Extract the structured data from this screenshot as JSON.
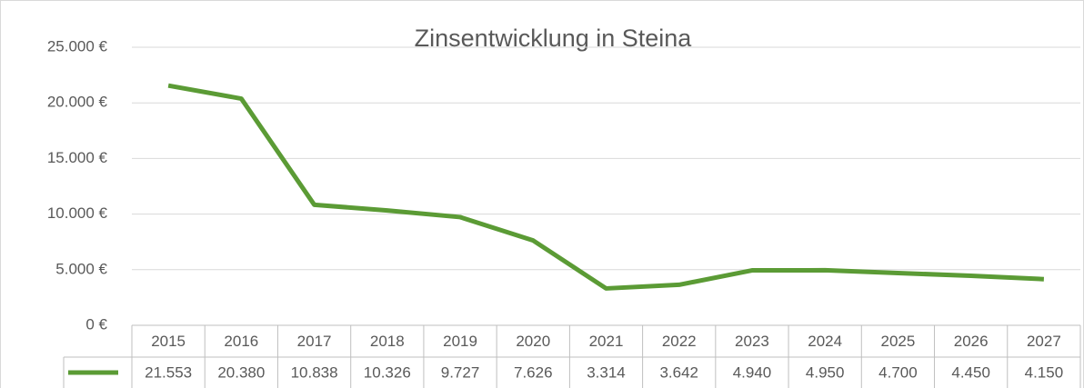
{
  "chart_data": {
    "type": "line",
    "title": "Zinsentwicklung in Steina",
    "categories": [
      "2015",
      "2016",
      "2017",
      "2018",
      "2019",
      "2020",
      "2021",
      "2022",
      "2023",
      "2024",
      "2025",
      "2026",
      "2027"
    ],
    "series": [
      {
        "color": "#5b9b35",
        "values": [
          21553,
          20380,
          10838,
          10326,
          9727,
          7626,
          3314,
          3642,
          4940,
          4950,
          4700,
          4450,
          4150
        ],
        "value_labels": [
          "21.553",
          "20.380",
          "10.838",
          "10.326",
          "9.727",
          "7.626",
          "3.314",
          "3.642",
          "4.940",
          "4.950",
          "4.700",
          "4.450",
          "4.150"
        ]
      }
    ],
    "ylim": [
      0,
      25000
    ],
    "yticks": [
      {
        "value": 0,
        "label": "0 €"
      },
      {
        "value": 5000,
        "label": "5.000 €"
      },
      {
        "value": 10000,
        "label": "10.000 €"
      },
      {
        "value": 15000,
        "label": "15.000 €"
      },
      {
        "value": 20000,
        "label": "20.000 €"
      },
      {
        "value": 25000,
        "label": "25.000 €"
      }
    ],
    "grid": true,
    "data_table": true
  }
}
